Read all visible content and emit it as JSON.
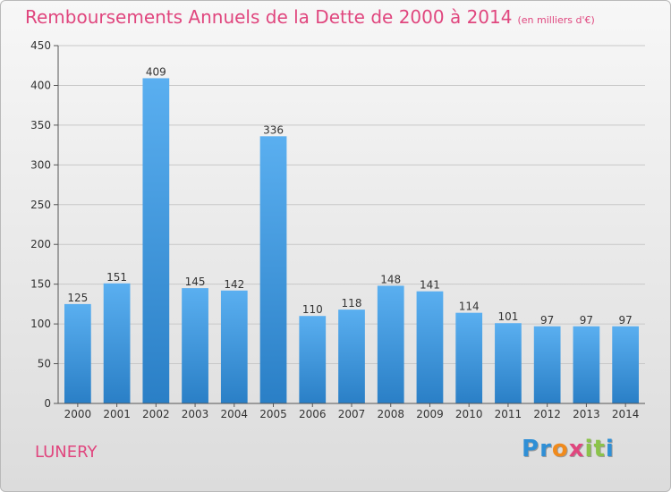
{
  "header": {
    "title": "Remboursements Annuels de la Dette de 2000 à 2014",
    "unit": "(en milliers d'€)"
  },
  "footer": {
    "commune": "LUNERY",
    "logo_letters": [
      "P",
      "r",
      "o",
      "x",
      "i",
      "t",
      "i"
    ],
    "logo_colors": [
      "#2f8fd6",
      "#2f8fd6",
      "#f08a1c",
      "#e0467e",
      "#8bc34a",
      "#8bc34a",
      "#2f8fd6"
    ]
  },
  "chart_data": {
    "type": "bar",
    "categories": [
      "2000",
      "2001",
      "2002",
      "2003",
      "2004",
      "2005",
      "2006",
      "2007",
      "2008",
      "2009",
      "2010",
      "2011",
      "2012",
      "2013",
      "2014"
    ],
    "values": [
      125,
      151,
      409,
      145,
      142,
      336,
      110,
      118,
      148,
      141,
      114,
      101,
      97,
      97,
      97
    ],
    "data_labels": [
      "125",
      "151",
      "409",
      "145",
      "142",
      "336",
      "110",
      "118",
      "148",
      "141",
      "114",
      "101",
      "97",
      "97",
      "97"
    ],
    "ylim": [
      0,
      450
    ],
    "yticks": [
      0,
      50,
      100,
      150,
      200,
      250,
      300,
      350,
      400,
      450
    ],
    "ytick_labels": [
      "0",
      "50",
      "100",
      "150",
      "200",
      "250",
      "300",
      "350",
      "400",
      "450"
    ],
    "grid": true,
    "bar_color_top": "#5aaff0",
    "bar_color_bottom": "#2a7fc6",
    "title_color": "#e0467e"
  }
}
